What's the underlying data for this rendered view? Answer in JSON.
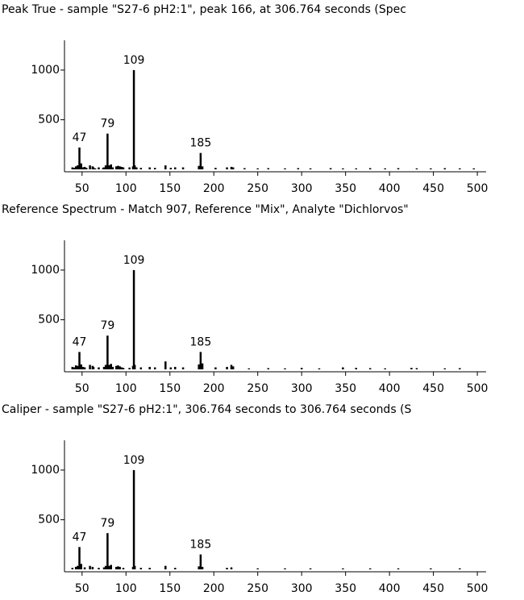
{
  "chart_data": [
    {
      "type": "stick",
      "title": "Peak True - sample \"S27-6 pH2:1\", peak 166, at 306.764 seconds (Spec",
      "x": [
        39,
        41,
        43,
        45,
        47,
        49,
        51,
        53,
        55,
        59,
        62,
        63,
        65,
        69,
        74,
        75,
        77,
        79,
        81,
        83,
        85,
        89,
        91,
        93,
        95,
        97,
        104,
        108,
        109,
        110,
        112,
        117,
        127,
        133,
        145,
        151,
        156,
        165,
        183,
        185,
        187,
        202,
        215,
        220,
        222,
        235,
        250,
        262,
        281,
        296,
        310,
        333,
        347,
        362,
        378,
        395,
        410,
        431,
        447,
        463,
        480,
        496
      ],
      "values": [
        20,
        15,
        30,
        40,
        220,
        60,
        20,
        25,
        15,
        40,
        30,
        20,
        10,
        20,
        15,
        20,
        40,
        360,
        40,
        50,
        20,
        30,
        35,
        30,
        25,
        20,
        20,
        30,
        1000,
        40,
        20,
        15,
        20,
        15,
        40,
        15,
        20,
        20,
        35,
        165,
        30,
        15,
        20,
        25,
        20,
        12,
        10,
        12,
        10,
        12,
        10,
        12,
        10,
        10,
        12,
        10,
        12,
        10,
        10,
        12,
        10,
        10
      ],
      "annotations": [
        47,
        79,
        109,
        185
      ],
      "xlim": [
        30,
        510
      ],
      "xticks": [
        50,
        100,
        150,
        200,
        250,
        300,
        350,
        400,
        450,
        500
      ],
      "ylim": [
        0,
        1300
      ],
      "yticks": [
        500,
        1000
      ],
      "color": "#000000"
    },
    {
      "type": "stick",
      "title": "Reference Spectrum - Match 907, Reference \"Mix\", Analyte \"Dichlorvos\"",
      "x": [
        39,
        41,
        43,
        45,
        47,
        49,
        51,
        53,
        59,
        62,
        63,
        69,
        75,
        77,
        79,
        81,
        83,
        85,
        89,
        91,
        93,
        95,
        97,
        104,
        108,
        109,
        110,
        117,
        127,
        133,
        145,
        151,
        156,
        165,
        183,
        185,
        187,
        202,
        215,
        220,
        222,
        240,
        262,
        281,
        300,
        320,
        347,
        362,
        378,
        395,
        425,
        431,
        463,
        480
      ],
      "values": [
        25,
        20,
        40,
        35,
        175,
        50,
        25,
        20,
        45,
        35,
        25,
        20,
        25,
        45,
        340,
        45,
        55,
        25,
        35,
        40,
        30,
        20,
        15,
        15,
        35,
        1000,
        45,
        20,
        25,
        20,
        80,
        20,
        25,
        20,
        50,
        175,
        60,
        20,
        25,
        45,
        30,
        10,
        12,
        10,
        15,
        10,
        20,
        15,
        12,
        10,
        15,
        12,
        10,
        12
      ],
      "annotations": [
        47,
        79,
        109,
        185
      ],
      "xlim": [
        30,
        510
      ],
      "xticks": [
        50,
        100,
        150,
        200,
        250,
        300,
        350,
        400,
        450,
        500
      ],
      "ylim": [
        0,
        1300
      ],
      "yticks": [
        500,
        1000
      ],
      "color": "#000000"
    },
    {
      "type": "stick",
      "title": "Caliper - sample \"S27-6 pH2:1\",  306.764 seconds to 306.764 seconds (S",
      "x": [
        39,
        43,
        45,
        47,
        49,
        53,
        59,
        62,
        69,
        75,
        77,
        79,
        81,
        83,
        89,
        91,
        93,
        97,
        108,
        109,
        110,
        117,
        127,
        145,
        156,
        183,
        185,
        187,
        215,
        220,
        250,
        281,
        310,
        347,
        378,
        410,
        447,
        480
      ],
      "values": [
        15,
        25,
        35,
        225,
        55,
        20,
        35,
        25,
        15,
        20,
        35,
        365,
        35,
        45,
        25,
        30,
        25,
        15,
        25,
        1000,
        35,
        15,
        15,
        35,
        15,
        30,
        150,
        25,
        15,
        20,
        10,
        10,
        10,
        10,
        10,
        10,
        10,
        10
      ],
      "annotations": [
        47,
        79,
        109,
        185
      ],
      "xlim": [
        30,
        510
      ],
      "xticks": [
        50,
        100,
        150,
        200,
        250,
        300,
        350,
        400,
        450,
        500
      ],
      "ylim": [
        0,
        1300
      ],
      "yticks": [
        500,
        1000
      ],
      "color": "#000000"
    }
  ]
}
